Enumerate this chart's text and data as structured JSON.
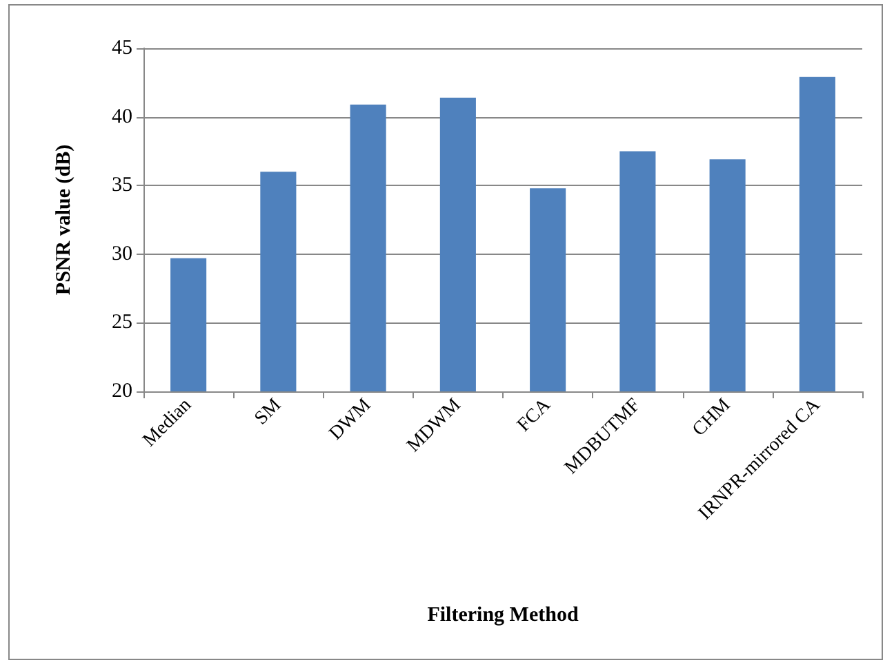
{
  "chart_data": {
    "type": "bar",
    "xlabel": "Filtering Method",
    "ylabel": "PSNR value (dB)",
    "categories": [
      "Median",
      "SM",
      "DWM",
      "MDWM",
      "FCA",
      "MDBUTMF",
      "CHM",
      "IRNPR-mirrored CA"
    ],
    "values": [
      29.7,
      36.0,
      40.9,
      41.4,
      34.8,
      37.5,
      36.9,
      42.9
    ],
    "color": "#4f81bd",
    "ylim": [
      20,
      45
    ],
    "yticks": [
      20,
      25,
      30,
      35,
      40,
      45
    ],
    "grid": "y"
  }
}
